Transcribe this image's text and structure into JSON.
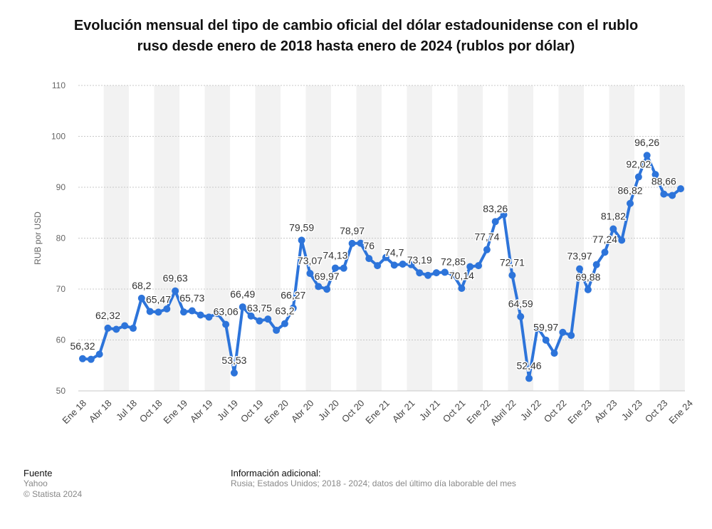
{
  "title_lines": [
    "Evolución mensual del tipo de cambio oficial del dólar estadounidense con el rublo",
    "ruso desde enero de 2018 hasta enero de 2024 (rublos por dólar)"
  ],
  "colors": {
    "line": "#2d74da",
    "band": "#f2f2f2",
    "grid": "#c8c8c8",
    "text": "#333333"
  },
  "chart_data": {
    "type": "line",
    "title": "Evolución mensual del tipo de cambio oficial del dólar estadounidense con el rublo ruso desde enero de 2018 hasta enero de 2024 (rublos por dólar)",
    "ylabel": "RUB por USD",
    "xlabel": "",
    "ylim": [
      50,
      110
    ],
    "yticks": [
      50,
      60,
      70,
      80,
      90,
      100,
      110
    ],
    "grid": true,
    "x_tick_labels": [
      "Ene 18",
      "Abr 18",
      "Jul 18",
      "Oct 18",
      "Ene 19",
      "Abr 19",
      "Jul 19",
      "Oct 19",
      "Ene 20",
      "Abr 20",
      "Jul 20",
      "Oct 20",
      "Ene 21",
      "Abr 21",
      "Jul 21",
      "Oct 21",
      "Ene 22",
      "Abril 22",
      "Jul 22",
      "Oct 22",
      "Ene 23",
      "Abr 23",
      "Jul 23",
      "Oct 23",
      "Ene 24"
    ],
    "series": [
      {
        "values": [
          56.32,
          56.2,
          57.2,
          62.32,
          62.1,
          62.8,
          62.3,
          68.2,
          65.6,
          65.47,
          66.1,
          69.63,
          65.5,
          65.73,
          64.9,
          64.5,
          65.2,
          63.06,
          53.53,
          66.49,
          64.7,
          63.75,
          64.1,
          61.9,
          63.2,
          66.27,
          79.59,
          73.07,
          70.5,
          69.97,
          74.13,
          74.1,
          78.97,
          79.0,
          76.0,
          74.6,
          76.2,
          74.7,
          74.9,
          74.8,
          73.19,
          72.7,
          73.2,
          73.3,
          72.85,
          70.14,
          74.4,
          74.6,
          77.74,
          83.26,
          84.6,
          72.71,
          64.59,
          52.46,
          62.5,
          59.97,
          57.4,
          61.5,
          60.9,
          73.97,
          69.88,
          74.8,
          77.24,
          81.82,
          79.6,
          86.82,
          92.02,
          96.26,
          92.5,
          88.66,
          88.4,
          89.7
        ]
      }
    ],
    "data_labels": [
      {
        "i": 0,
        "text": "56,32"
      },
      {
        "i": 3,
        "text": "62,32"
      },
      {
        "i": 7,
        "text": "68,2"
      },
      {
        "i": 9,
        "text": "65,47"
      },
      {
        "i": 11,
        "text": "69,63"
      },
      {
        "i": 13,
        "text": "65,73"
      },
      {
        "i": 17,
        "text": "63,06"
      },
      {
        "i": 18,
        "text": "53,53"
      },
      {
        "i": 19,
        "text": "66,49"
      },
      {
        "i": 21,
        "text": "63,75"
      },
      {
        "i": 24,
        "text": "63,2"
      },
      {
        "i": 25,
        "text": "66,27"
      },
      {
        "i": 26,
        "text": "79,59"
      },
      {
        "i": 27,
        "text": "73,07"
      },
      {
        "i": 29,
        "text": "69,97"
      },
      {
        "i": 30,
        "text": "74,13"
      },
      {
        "i": 32,
        "text": "78,97"
      },
      {
        "i": 34,
        "text": "76"
      },
      {
        "i": 37,
        "text": "74,7"
      },
      {
        "i": 40,
        "text": "73,19"
      },
      {
        "i": 44,
        "text": "72,85"
      },
      {
        "i": 45,
        "text": "70,14"
      },
      {
        "i": 48,
        "text": "77,74"
      },
      {
        "i": 49,
        "text": "83,26"
      },
      {
        "i": 51,
        "text": "72,71"
      },
      {
        "i": 52,
        "text": "64,59"
      },
      {
        "i": 53,
        "text": "52,46"
      },
      {
        "i": 55,
        "text": "59,97"
      },
      {
        "i": 59,
        "text": "73,97"
      },
      {
        "i": 60,
        "text": "69,88"
      },
      {
        "i": 62,
        "text": "77,24"
      },
      {
        "i": 63,
        "text": "81,82"
      },
      {
        "i": 65,
        "text": "86,82"
      },
      {
        "i": 66,
        "text": "92,02"
      },
      {
        "i": 67,
        "text": "96,26"
      },
      {
        "i": 69,
        "text": "88,66"
      }
    ]
  },
  "footer": {
    "source_heading": "Fuente",
    "source": "Yahoo",
    "copyright": "© Statista 2024",
    "info_heading": "Información adicional:",
    "info": "Rusia; Estados Unidos; 2018 - 2024; datos del último día laborable del mes"
  }
}
